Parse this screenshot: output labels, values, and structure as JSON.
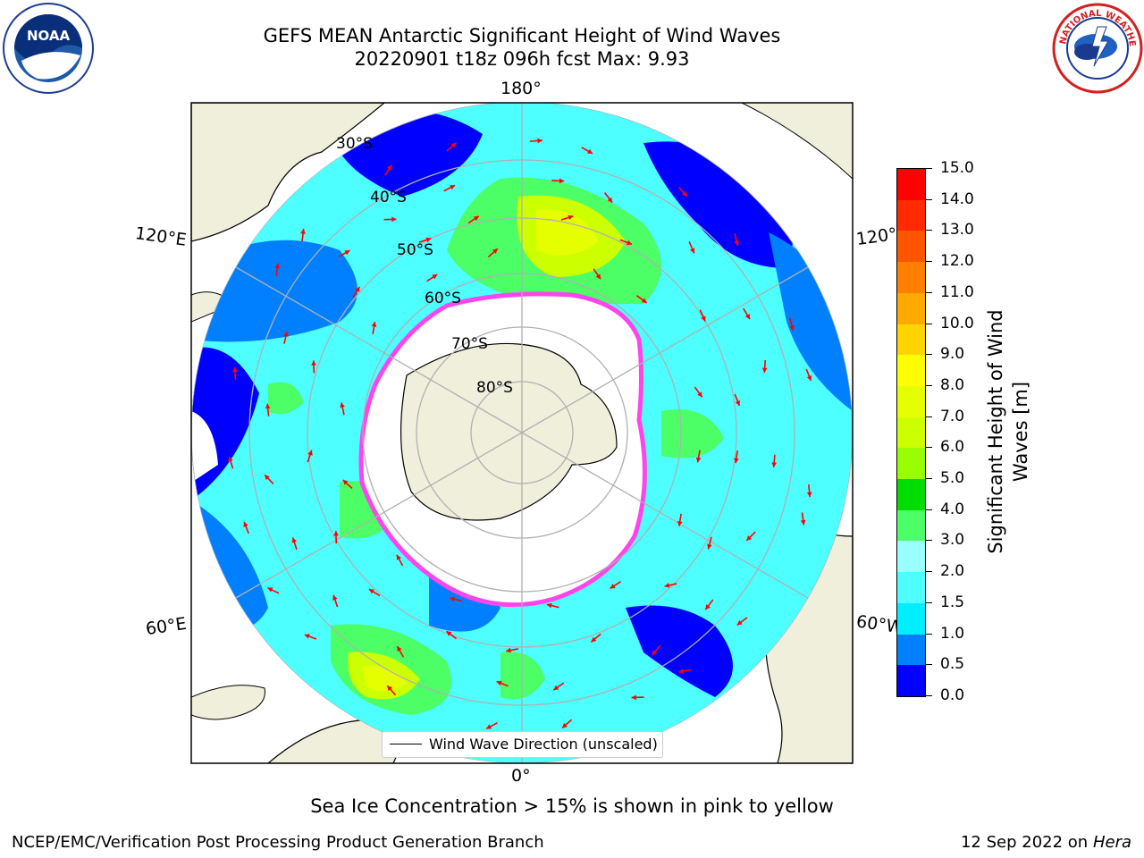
{
  "title": {
    "line1": "GEFS MEAN Antarctic Significant Height of Wind Waves",
    "line2": "20220901 t18z 096h fcst   Max: 9.93"
  },
  "logos": {
    "left": {
      "icon": "noaa-logo",
      "text": "NOAA"
    },
    "right": {
      "icon": "national-weather-service-logo",
      "text": "NATIONAL WEATHER SERVICE"
    }
  },
  "map": {
    "projection": "south-polar-stereographic",
    "longitude_labels": {
      "top": "180°",
      "bottom": "0°",
      "left_upper": "120°E",
      "left_lower": "60°E",
      "right_upper": "120°",
      "right_lower": "60°W"
    },
    "latitude_labels": [
      "30°S",
      "40°S",
      "50°S",
      "60°S",
      "70°S",
      "80°S"
    ],
    "legend": "Wind Wave Direction (unscaled)",
    "colors": {
      "land": "#efefdc",
      "ice_edge": "#ff44ee",
      "arrows": "#ff0000",
      "graticule": "#b0b0b0"
    }
  },
  "colorbar": {
    "title": "Significant Height of Wind Waves [m]",
    "ticks": [
      "15.0",
      "14.0",
      "13.0",
      "12.0",
      "11.0",
      "10.0",
      "9.0",
      "8.0",
      "7.0",
      "6.0",
      "5.0",
      "4.0",
      "3.0",
      "2.0",
      "1.5",
      "1.0",
      "0.5",
      "0.0"
    ],
    "colors": [
      "#ff0000",
      "#ff2a00",
      "#ff5500",
      "#ff8000",
      "#ffaa00",
      "#ffd400",
      "#ffff00",
      "#e6ff00",
      "#ccff00",
      "#99ff00",
      "#00dd00",
      "#4cff66",
      "#99ffff",
      "#4dffff",
      "#00eeff",
      "#0080ff",
      "#0000ff"
    ]
  },
  "notes": {
    "sea_ice": "Sea Ice Concentration > 15% is shown in pink to yellow",
    "producer": "NCEP/EMC/Verification Post Processing Product Generation Branch",
    "date": "12 Sep 2022 on",
    "machine": "Hera"
  }
}
